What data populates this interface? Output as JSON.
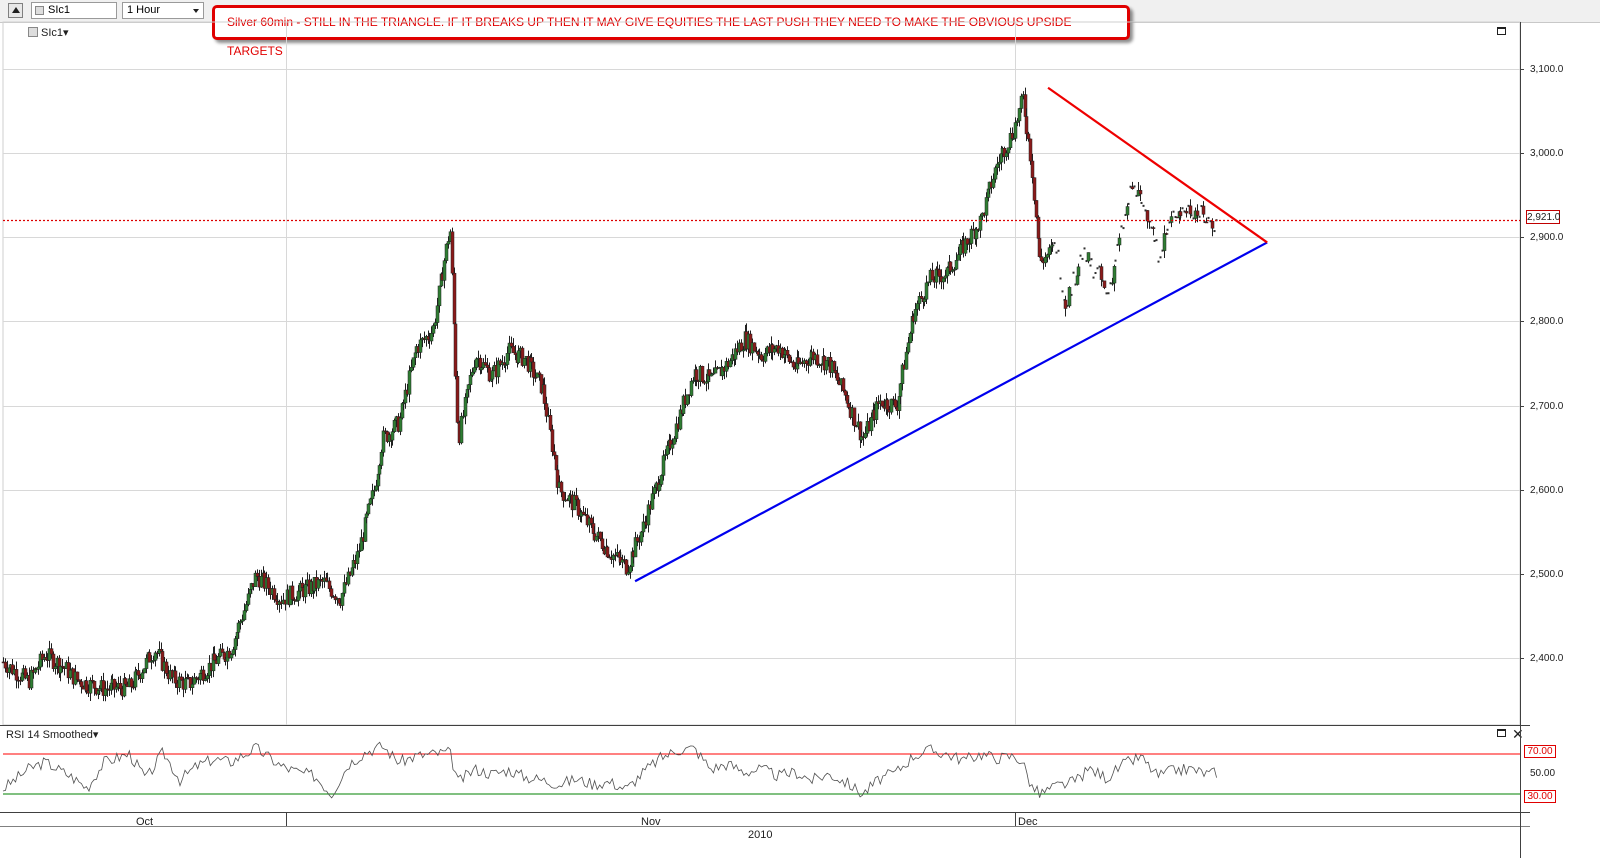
{
  "toolbar": {
    "symbol": "SIc1",
    "timeframe": "1 Hour"
  },
  "annotation": "Silver 60min - STILL IN THE TRIANGLE. IF IT BREAKS UP THEN IT MAY GIVE EQUITIES THE LAST PUSH THEY NEED TO MAKE THE OBVIOUS UPSIDE TARGETS",
  "legend": "SIc1",
  "rsi_title": "RSI 14 Smoothed",
  "colors": {
    "annotation": "#e00000",
    "up_candle": "#2f7d32",
    "down_candle": "#8b1a1a",
    "support_line": "#0000ee",
    "resistance_line": "#ee0000",
    "price_line": "#dd0000",
    "rsi_overbought": "#ff0000",
    "rsi_oversold": "#008000"
  },
  "chart_data": {
    "type": "candlestick",
    "title": "",
    "xlabel": "",
    "ylabel": "",
    "ylim": [
      2320,
      3130
    ],
    "y_ticks": [
      "2,400.0",
      "2,500.0",
      "2,600.0",
      "2,700.0",
      "2,800.0",
      "2,900.0",
      "3,000.0",
      "3,100.0"
    ],
    "x_months": [
      "Oct",
      "Nov",
      "Dec"
    ],
    "x_year": "2010",
    "last_price": 2921.0,
    "last_price_label": "2,921.0",
    "approx_path": [
      [
        0,
        2395
      ],
      [
        3,
        2372
      ],
      [
        5,
        2404
      ],
      [
        7,
        2390
      ],
      [
        9,
        2372
      ],
      [
        12,
        2363
      ],
      [
        15,
        2365
      ],
      [
        18,
        2410
      ],
      [
        20,
        2375
      ],
      [
        22,
        2368
      ],
      [
        25,
        2395
      ],
      [
        27,
        2410
      ],
      [
        30,
        2498
      ],
      [
        33,
        2470
      ],
      [
        36,
        2482
      ],
      [
        38,
        2490
      ],
      [
        40,
        2470
      ],
      [
        42,
        2520
      ],
      [
        44,
        2600
      ],
      [
        45,
        2660
      ],
      [
        47,
        2680
      ],
      [
        49,
        2768
      ],
      [
        51,
        2790
      ],
      [
        53,
        2912
      ],
      [
        54,
        2660
      ],
      [
        56,
        2760
      ],
      [
        58,
        2735
      ],
      [
        60,
        2765
      ],
      [
        62,
        2755
      ],
      [
        64,
        2720
      ],
      [
        66,
        2600
      ],
      [
        68,
        2580
      ],
      [
        70,
        2550
      ],
      [
        72,
        2525
      ],
      [
        74,
        2508
      ],
      [
        76,
        2558
      ],
      [
        78,
        2620
      ],
      [
        80,
        2680
      ],
      [
        82,
        2740
      ],
      [
        84,
        2730
      ],
      [
        86,
        2750
      ],
      [
        88,
        2780
      ],
      [
        90,
        2760
      ],
      [
        92,
        2770
      ],
      [
        94,
        2745
      ],
      [
        96,
        2760
      ],
      [
        98,
        2750
      ],
      [
        100,
        2710
      ],
      [
        102,
        2660
      ],
      [
        104,
        2705
      ],
      [
        106,
        2700
      ],
      [
        108,
        2810
      ],
      [
        110,
        2850
      ],
      [
        112,
        2858
      ],
      [
        114,
        2890
      ],
      [
        116,
        2920
      ],
      [
        118,
        2990
      ],
      [
        120,
        3030
      ],
      [
        121,
        3065
      ],
      [
        122,
        2990
      ],
      [
        123,
        2870
      ],
      [
        125,
        2890
      ],
      [
        126,
        2820
      ],
      [
        128,
        2880
      ],
      [
        130,
        2855
      ],
      [
        131,
        2830
      ],
      [
        133,
        2920
      ],
      [
        134,
        2960
      ],
      [
        136,
        2925
      ],
      [
        137,
        2880
      ],
      [
        139,
        2930
      ],
      [
        141,
        2935
      ],
      [
        143,
        2920
      ],
      [
        144,
        2915
      ]
    ],
    "support_trendline": [
      [
        75,
        2491
      ],
      [
        150,
        2894
      ]
    ],
    "resistance_trendline": [
      [
        124,
        3078
      ],
      [
        150,
        2894
      ]
    ],
    "rsi": {
      "levels": [
        70,
        30
      ],
      "level_labels": [
        "70.00",
        "30.00"
      ],
      "mid_label": "50.00",
      "approx_path": [
        [
          0,
          35
        ],
        [
          3,
          55
        ],
        [
          5,
          62
        ],
        [
          8,
          48
        ],
        [
          10,
          36
        ],
        [
          12,
          62
        ],
        [
          15,
          70
        ],
        [
          17,
          45
        ],
        [
          19,
          72
        ],
        [
          21,
          44
        ],
        [
          23,
          58
        ],
        [
          25,
          65
        ],
        [
          27,
          62
        ],
        [
          30,
          76
        ],
        [
          33,
          58
        ],
        [
          35,
          52
        ],
        [
          37,
          48
        ],
        [
          39,
          30
        ],
        [
          41,
          60
        ],
        [
          43,
          72
        ],
        [
          45,
          78
        ],
        [
          47,
          62
        ],
        [
          49,
          68
        ],
        [
          51,
          70
        ],
        [
          53,
          72
        ],
        [
          54,
          42
        ],
        [
          56,
          55
        ],
        [
          58,
          50
        ],
        [
          60,
          54
        ],
        [
          62,
          47
        ],
        [
          64,
          44
        ],
        [
          66,
          40
        ],
        [
          68,
          45
        ],
        [
          70,
          40
        ],
        [
          72,
          42
        ],
        [
          74,
          35
        ],
        [
          76,
          52
        ],
        [
          78,
          66
        ],
        [
          80,
          74
        ],
        [
          82,
          76
        ],
        [
          84,
          55
        ],
        [
          86,
          60
        ],
        [
          88,
          52
        ],
        [
          90,
          55
        ],
        [
          92,
          48
        ],
        [
          94,
          52
        ],
        [
          96,
          44
        ],
        [
          98,
          50
        ],
        [
          100,
          42
        ],
        [
          102,
          30
        ],
        [
          104,
          45
        ],
        [
          106,
          52
        ],
        [
          108,
          68
        ],
        [
          110,
          74
        ],
        [
          112,
          70
        ],
        [
          114,
          64
        ],
        [
          116,
          70
        ],
        [
          118,
          66
        ],
        [
          120,
          68
        ],
        [
          121,
          62
        ],
        [
          122,
          38
        ],
        [
          123,
          30
        ],
        [
          125,
          38
        ],
        [
          127,
          42
        ],
        [
          129,
          55
        ],
        [
          131,
          46
        ],
        [
          133,
          60
        ],
        [
          135,
          67
        ],
        [
          137,
          48
        ],
        [
          139,
          54
        ],
        [
          141,
          55
        ],
        [
          143,
          50
        ],
        [
          144,
          52
        ]
      ]
    }
  }
}
